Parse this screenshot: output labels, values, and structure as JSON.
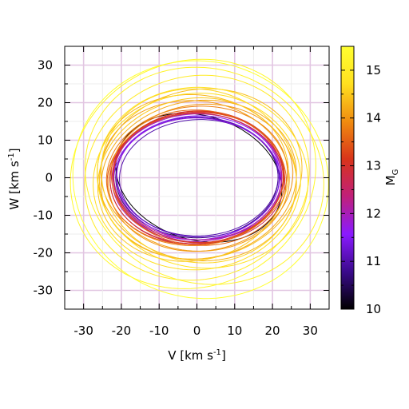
{
  "chart_data": {
    "type": "line",
    "xlabel": "V [km s",
    "xlabel_sup": "-1",
    "xlabel_tail": "]",
    "ylabel": "W [km s",
    "ylabel_sup": "-1",
    "ylabel_tail": "]",
    "xlim": [
      -35,
      35
    ],
    "ylim": [
      -35,
      35
    ],
    "x_ticks": [
      -30,
      -20,
      -10,
      0,
      10,
      20,
      30
    ],
    "y_ticks": [
      -30,
      -20,
      -10,
      0,
      10,
      20,
      30
    ],
    "grid": true,
    "colorbar": {
      "label": "M",
      "label_sub": "G",
      "range": [
        10,
        15.5
      ],
      "ticks": [
        10,
        11,
        12,
        13,
        14,
        15
      ],
      "colormap": [
        "#000000",
        "#3b0a8c",
        "#8a1aff",
        "#c0207a",
        "#d8341a",
        "#f08c10",
        "#ffe020",
        "#ffff30"
      ]
    },
    "series": [
      {
        "mag": 10.0,
        "cx": 0.5,
        "cy": 0.0,
        "rx": 22.5,
        "ry": 16.5,
        "angle": -18
      },
      {
        "mag": 10.6,
        "cx": 0.0,
        "cy": 0.0,
        "rx": 21.5,
        "ry": 16.0,
        "angle": 0
      },
      {
        "mag": 11.0,
        "cx": 0.5,
        "cy": 0.0,
        "rx": 21.0,
        "ry": 15.5,
        "angle": 2
      },
      {
        "mag": 11.2,
        "cx": 0.3,
        "cy": 0.2,
        "rx": 21.5,
        "ry": 16.0,
        "angle": -2
      },
      {
        "mag": 11.5,
        "cx": 0.0,
        "cy": 0.0,
        "rx": 22.0,
        "ry": 16.5,
        "angle": 3
      },
      {
        "mag": 11.7,
        "cx": 0.5,
        "cy": -0.3,
        "rx": 21.8,
        "ry": 16.2,
        "angle": -3
      },
      {
        "mag": 12.0,
        "cx": 0.0,
        "cy": 0.0,
        "rx": 22.5,
        "ry": 17.0,
        "angle": 2
      },
      {
        "mag": 12.2,
        "cx": 0.2,
        "cy": 0.3,
        "rx": 22.2,
        "ry": 16.8,
        "angle": -1
      },
      {
        "mag": 12.5,
        "cx": 0.0,
        "cy": 0.0,
        "rx": 23.0,
        "ry": 17.5,
        "angle": 4
      },
      {
        "mag": 12.7,
        "cx": 0.5,
        "cy": 0.0,
        "rx": 22.8,
        "ry": 17.2,
        "angle": -4
      },
      {
        "mag": 13.0,
        "cx": 0.0,
        "cy": 0.0,
        "rx": 23.0,
        "ry": 17.8,
        "angle": 3
      },
      {
        "mag": 13.2,
        "cx": 0.3,
        "cy": 0.2,
        "rx": 22.5,
        "ry": 17.5,
        "angle": 0
      },
      {
        "mag": 13.4,
        "cx": -0.3,
        "cy": -0.2,
        "rx": 23.5,
        "ry": 17.5,
        "angle": 5
      },
      {
        "mag": 13.6,
        "cx": 0.5,
        "cy": 0.0,
        "rx": 23.2,
        "ry": 18.0,
        "angle": -5
      },
      {
        "mag": 13.8,
        "cx": 0.0,
        "cy": 0.5,
        "rx": 24.0,
        "ry": 18.5,
        "angle": 6
      },
      {
        "mag": 14.0,
        "cx": 1.0,
        "cy": 0.0,
        "rx": 24.5,
        "ry": 19.5,
        "angle": 8
      },
      {
        "mag": 14.1,
        "cx": -0.5,
        "cy": 0.5,
        "rx": 25.0,
        "ry": 20.0,
        "angle": -6
      },
      {
        "mag": 14.2,
        "cx": 0.5,
        "cy": -0.5,
        "rx": 26.0,
        "ry": 21.0,
        "angle": 10
      },
      {
        "mag": 14.3,
        "cx": 0.0,
        "cy": 0.0,
        "rx": 26.5,
        "ry": 22.0,
        "angle": -10
      },
      {
        "mag": 14.4,
        "cx": 1.0,
        "cy": 1.0,
        "rx": 27.0,
        "ry": 22.5,
        "angle": 12
      },
      {
        "mag": 14.5,
        "cx": -1.0,
        "cy": -0.5,
        "rx": 25.5,
        "ry": 21.5,
        "angle": 15
      },
      {
        "mag": 14.6,
        "cx": 0.5,
        "cy": 0.5,
        "rx": 26.0,
        "ry": 23.0,
        "angle": -14
      },
      {
        "mag": 14.7,
        "cx": 0.0,
        "cy": -1.0,
        "rx": 27.5,
        "ry": 23.5,
        "angle": 5
      },
      {
        "mag": 14.8,
        "cx": 1.5,
        "cy": 0.0,
        "rx": 28.0,
        "ry": 24.0,
        "angle": -8
      },
      {
        "mag": 15.0,
        "cx": 0.0,
        "cy": 0.0,
        "rx": 30.0,
        "ry": 27.0,
        "angle": 18
      },
      {
        "mag": 15.2,
        "cx": 2.0,
        "cy": 0.5,
        "rx": 32.0,
        "ry": 28.5,
        "angle": -20
      },
      {
        "mag": 15.3,
        "cx": -1.0,
        "cy": 1.0,
        "rx": 33.0,
        "ry": 30.0,
        "angle": 25
      },
      {
        "mag": 15.5,
        "cx": 1.0,
        "cy": -0.5,
        "rx": 34.0,
        "ry": 31.5,
        "angle": -15
      }
    ]
  }
}
